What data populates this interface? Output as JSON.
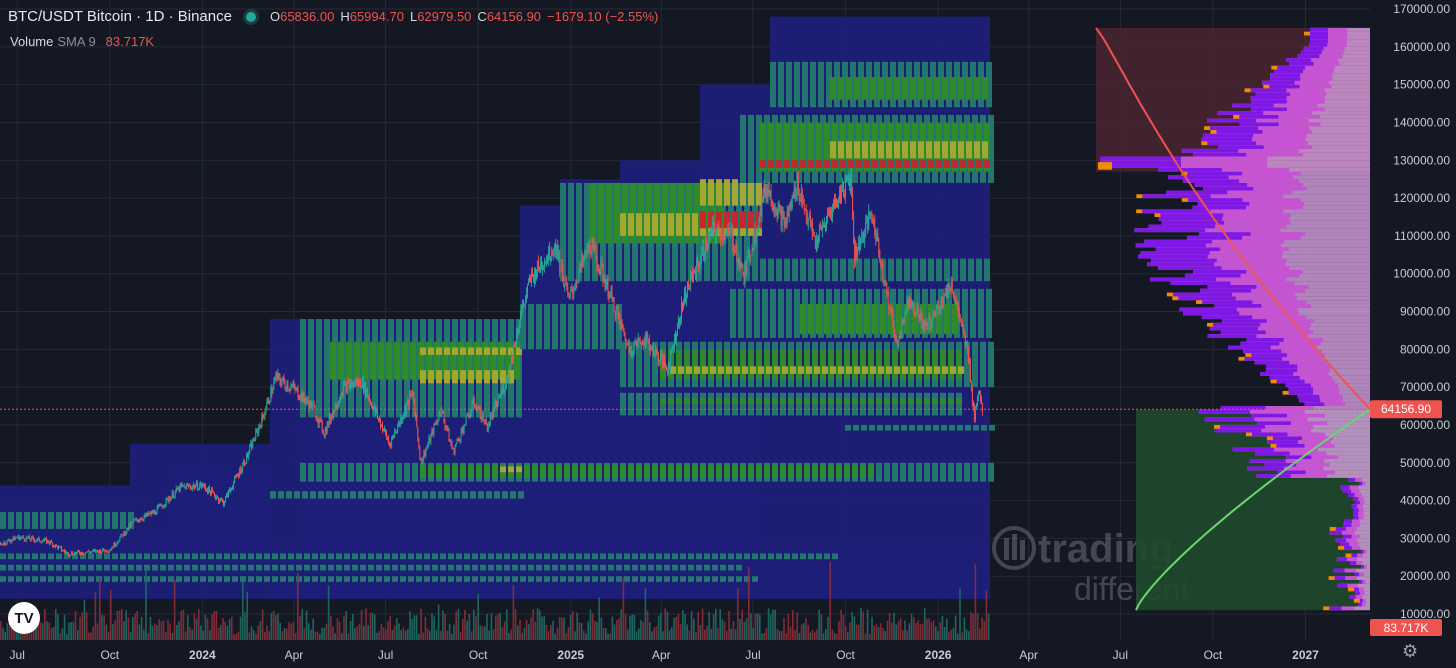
{
  "header": {
    "symbol": "BTC/USDT Bitcoin · 1D · Binance",
    "open_label": "O",
    "open": "65836.00",
    "high_label": "H",
    "high": "65994.70",
    "low_label": "L",
    "low": "62979.50",
    "close_label": "C",
    "close": "64156.90",
    "change": "−1679.10 (−2.55%)"
  },
  "volume_indicator": {
    "label": "Volume",
    "sma": "SMA 9",
    "value": "83.717K"
  },
  "price_tag": "64156.90",
  "volume_tag": "83.717K",
  "watermark": {
    "line1": "trading",
    "line2": "different"
  },
  "logo_text": "TV",
  "colors": {
    "background": "#141823",
    "up": "#26a69a",
    "down": "#ef5350",
    "heat_navy": "#1c1f78",
    "heat_teal": "#23766e",
    "heat_green": "#2f8a2a",
    "heat_yellow": "#a3a632",
    "heat_red": "#c8262f",
    "profile_violet": "#7b14e6",
    "profile_magenta": "#c64fd4",
    "profile_pink": "#e6a8ef",
    "profile_orange": "#f08c00",
    "curve_red": "#ef5350",
    "curve_green": "#69d66d"
  },
  "chart_data": {
    "type": "candlestick",
    "title": "BTC/USDT Bitcoin · 1D · Binance",
    "y_axis": {
      "ylim": [
        10000,
        170000
      ],
      "ticks": [
        "170000.00",
        "160000.00",
        "150000.00",
        "140000.00",
        "130000.00",
        "120000.00",
        "110000.00",
        "100000.00",
        "90000.00",
        "80000.00",
        "70000.00",
        "60000.00",
        "50000.00",
        "40000.00",
        "30000.00",
        "20000.00",
        "10000.00"
      ],
      "tick_values": [
        170000,
        160000,
        150000,
        140000,
        130000,
        120000,
        110000,
        100000,
        90000,
        80000,
        70000,
        60000,
        50000,
        40000,
        30000,
        20000,
        10000
      ]
    },
    "x_axis": {
      "ticks": [
        "Jul",
        "Oct",
        "2024",
        "Apr",
        "Jul",
        "Oct",
        "2025",
        "Apr",
        "Jul",
        "Oct",
        "2026",
        "Apr",
        "Jul",
        "Oct",
        "2027"
      ],
      "tick_dates": [
        "2023-07-01",
        "2023-10-01",
        "2024-01-01",
        "2024-04-01",
        "2024-07-01",
        "2024-10-01",
        "2025-01-01",
        "2025-04-01",
        "2025-07-01",
        "2025-10-01",
        "2026-01-01",
        "2026-04-01",
        "2026-07-01",
        "2026-10-01",
        "2027-01-01"
      ]
    },
    "price_path": [
      [
        "2023-06-01",
        27000
      ],
      [
        "2023-07-01",
        30300
      ],
      [
        "2023-08-01",
        29200
      ],
      [
        "2023-08-20",
        26000
      ],
      [
        "2023-09-15",
        26500
      ],
      [
        "2023-10-01",
        27000
      ],
      [
        "2023-10-25",
        34500
      ],
      [
        "2023-11-15",
        37000
      ],
      [
        "2023-12-10",
        43500
      ],
      [
        "2024-01-01",
        44000
      ],
      [
        "2024-01-22",
        39500
      ],
      [
        "2024-02-15",
        52000
      ],
      [
        "2024-03-01",
        62000
      ],
      [
        "2024-03-14",
        72500
      ],
      [
        "2024-04-01",
        69500
      ],
      [
        "2024-04-20",
        64500
      ],
      [
        "2024-05-01",
        58000
      ],
      [
        "2024-05-20",
        70000
      ],
      [
        "2024-06-07",
        71500
      ],
      [
        "2024-06-25",
        61000
      ],
      [
        "2024-07-05",
        55000
      ],
      [
        "2024-07-28",
        68500
      ],
      [
        "2024-08-05",
        50000
      ],
      [
        "2024-08-25",
        64000
      ],
      [
        "2024-09-06",
        53000
      ],
      [
        "2024-09-27",
        66000
      ],
      [
        "2024-10-10",
        59500
      ],
      [
        "2024-10-30",
        72500
      ],
      [
        "2024-11-12",
        89000
      ],
      [
        "2024-11-22",
        98500
      ],
      [
        "2024-12-05",
        103500
      ],
      [
        "2024-12-17",
        107500
      ],
      [
        "2024-12-30",
        93000
      ],
      [
        "2025-01-20",
        108000
      ],
      [
        "2025-02-05",
        97500
      ],
      [
        "2025-02-28",
        80000
      ],
      [
        "2025-03-15",
        83000
      ],
      [
        "2025-04-07",
        75000
      ],
      [
        "2025-04-25",
        95000
      ],
      [
        "2025-05-22",
        111500
      ],
      [
        "2025-06-10",
        110000
      ],
      [
        "2025-06-22",
        99000
      ],
      [
        "2025-07-14",
        123000
      ],
      [
        "2025-08-02",
        113000
      ],
      [
        "2025-08-14",
        124000
      ],
      [
        "2025-09-01",
        108000
      ],
      [
        "2025-09-18",
        117500
      ],
      [
        "2025-10-06",
        126000
      ],
      [
        "2025-10-10",
        105000
      ],
      [
        "2025-10-27",
        116000
      ],
      [
        "2025-11-21",
        81000
      ],
      [
        "2025-12-03",
        94000
      ],
      [
        "2025-12-20",
        85500
      ],
      [
        "2026-01-14",
        97500
      ],
      [
        "2026-01-31",
        78000
      ],
      [
        "2026-02-06",
        62000
      ],
      [
        "2026-02-10",
        70000
      ],
      [
        "2026-02-14",
        64156.9
      ]
    ],
    "last_ohlc": {
      "open": 65836.0,
      "high": 65994.7,
      "low": 62979.5,
      "close": 64156.9,
      "change": -1679.1,
      "change_pct": -2.55
    },
    "volume": {
      "sma_length": 9,
      "last": 83.717,
      "unit": "K"
    },
    "heatmap": {
      "note": "liquidation-style heat bands",
      "band_colors": [
        "navy",
        "teal",
        "green",
        "yellow",
        "red"
      ]
    },
    "volume_profile": {
      "side": "right"
    }
  },
  "branding": "trading different"
}
